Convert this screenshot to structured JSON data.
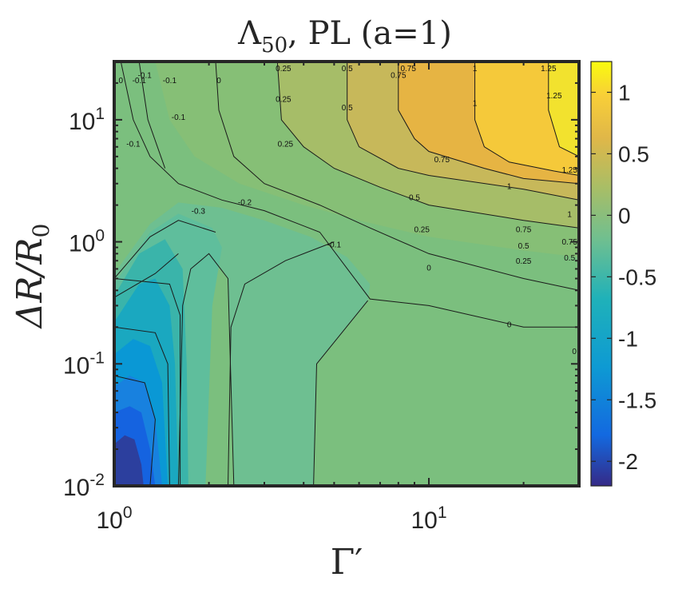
{
  "chart_data": {
    "type": "contour",
    "title": {
      "main": "Λ",
      "sub": "50",
      "rest": ", PL (a=1)"
    },
    "xlabel": "Γ′",
    "ylabel": "ΔR/R",
    "ylabel_sub": "0",
    "x_scale": "log",
    "y_scale": "log",
    "xlim": [
      1,
      30
    ],
    "ylim": [
      0.01,
      30
    ],
    "x_ticks": [
      {
        "value": 1,
        "base": "10",
        "exp": "0"
      },
      {
        "value": 10,
        "base": "10",
        "exp": "1"
      }
    ],
    "y_ticks": [
      {
        "value": 0.01,
        "base": "10",
        "exp": "-2"
      },
      {
        "value": 0.1,
        "base": "10",
        "exp": "-1"
      },
      {
        "value": 1,
        "base": "10",
        "exp": "0"
      },
      {
        "value": 10,
        "base": "10",
        "exp": "1"
      }
    ],
    "colorbar": {
      "colormap": "parula",
      "range": [
        -2.2,
        1.25
      ],
      "ticks": [
        {
          "value": 1,
          "label": "1"
        },
        {
          "value": 0.5,
          "label": "0.5"
        },
        {
          "value": 0,
          "label": "0"
        },
        {
          "value": -0.5,
          "label": "-0.5"
        },
        {
          "value": -1,
          "label": "-1"
        },
        {
          "value": -1.5,
          "label": "-1.5"
        },
        {
          "value": -2,
          "label": "-2"
        }
      ]
    },
    "filled_regions": [
      {
        "level": -0.1,
        "color": "#7bbf7e",
        "points": [
          [
            1,
            0.01
          ],
          [
            30,
            0.01
          ],
          [
            30,
            30
          ],
          [
            1,
            30
          ]
        ]
      },
      {
        "level": 0,
        "color": "#86bf76",
        "points": [
          [
            1.35,
            30
          ],
          [
            1.5,
            10
          ],
          [
            1.8,
            5
          ],
          [
            2.5,
            3
          ],
          [
            4,
            2
          ],
          [
            6,
            1.5
          ],
          [
            10,
            1.1
          ],
          [
            20,
            0.85
          ],
          [
            30,
            0.75
          ],
          [
            30,
            30
          ]
        ]
      },
      {
        "level": 0.25,
        "color": "#a6bd68",
        "points": [
          [
            3.3,
            30
          ],
          [
            3.4,
            10
          ],
          [
            4,
            6
          ],
          [
            5,
            4
          ],
          [
            7,
            2.8
          ],
          [
            10,
            2
          ],
          [
            20,
            1.5
          ],
          [
            30,
            1.3
          ],
          [
            30,
            30
          ]
        ]
      },
      {
        "level": 0.5,
        "color": "#c7b85a",
        "points": [
          [
            5.5,
            30
          ],
          [
            5.5,
            10
          ],
          [
            6,
            6
          ],
          [
            8,
            4
          ],
          [
            10,
            3.5
          ],
          [
            20,
            2.7
          ],
          [
            30,
            2.2
          ],
          [
            30,
            30
          ]
        ]
      },
      {
        "level": 0.75,
        "color": "#e6b443",
        "points": [
          [
            8,
            30
          ],
          [
            8,
            12
          ],
          [
            9,
            7
          ],
          [
            10,
            5.5
          ],
          [
            15,
            4
          ],
          [
            20,
            3.3
          ],
          [
            30,
            3
          ],
          [
            30,
            30
          ]
        ]
      },
      {
        "level": 1.0,
        "color": "#f5c93a",
        "points": [
          [
            14,
            30
          ],
          [
            14,
            10
          ],
          [
            15,
            6
          ],
          [
            18,
            4.5
          ],
          [
            25,
            3.8
          ],
          [
            30,
            3.5
          ],
          [
            30,
            30
          ]
        ]
      },
      {
        "level": 1.25,
        "color": "#f2e22e",
        "points": [
          [
            24,
            30
          ],
          [
            24,
            12
          ],
          [
            26,
            6
          ],
          [
            30,
            5
          ],
          [
            30,
            30
          ]
        ]
      },
      {
        "level": -0.2,
        "color": "#6ebf91",
        "points": [
          [
            1,
            0.55
          ],
          [
            1.3,
            1.4
          ],
          [
            1.6,
            2.1
          ],
          [
            2.2,
            1.9
          ],
          [
            3,
            1.5
          ],
          [
            4.2,
            1.1
          ],
          [
            5.5,
            0.75
          ],
          [
            6.5,
            0.45
          ],
          [
            6.4,
            0.33
          ],
          [
            4.4,
            0.1
          ],
          [
            4.3,
            0.01
          ],
          [
            2.4,
            0.01
          ],
          [
            2.3,
            0.5
          ],
          [
            1.9,
            0.9
          ],
          [
            1.5,
            0.8
          ],
          [
            1,
            0.3
          ]
        ]
      },
      {
        "level": -0.3,
        "color": "#5fbe9c",
        "points": [
          [
            1,
            0.45
          ],
          [
            1.3,
            1.2
          ],
          [
            1.6,
            1.7
          ],
          [
            2.05,
            1.3
          ],
          [
            2.2,
            0.9
          ],
          [
            2.05,
            0.3
          ],
          [
            1.95,
            0.01
          ],
          [
            1,
            0.01
          ]
        ]
      },
      {
        "level": -0.5,
        "color": "#3ab4aa",
        "points": [
          [
            1,
            0.36
          ],
          [
            1.2,
            0.8
          ],
          [
            1.45,
            1.05
          ],
          [
            1.65,
            0.6
          ],
          [
            1.7,
            0.1
          ],
          [
            1.72,
            0.01
          ],
          [
            1,
            0.01
          ]
        ]
      },
      {
        "level": -0.75,
        "color": "#1aa8c0",
        "points": [
          [
            1,
            0.22
          ],
          [
            1.2,
            0.45
          ],
          [
            1.35,
            0.5
          ],
          [
            1.5,
            0.3
          ],
          [
            1.56,
            0.1
          ],
          [
            1.6,
            0.01
          ],
          [
            1,
            0.01
          ]
        ]
      },
      {
        "level": -1.0,
        "color": "#0a98d5",
        "points": [
          [
            1,
            0.12
          ],
          [
            1.15,
            0.16
          ],
          [
            1.3,
            0.14
          ],
          [
            1.42,
            0.07
          ],
          [
            1.48,
            0.01
          ],
          [
            1,
            0.01
          ]
        ]
      },
      {
        "level": -1.3,
        "color": "#1881df",
        "points": [
          [
            1,
            0.065
          ],
          [
            1.12,
            0.08
          ],
          [
            1.25,
            0.07
          ],
          [
            1.35,
            0.035
          ],
          [
            1.42,
            0.01
          ],
          [
            1,
            0.01
          ]
        ]
      },
      {
        "level": -1.6,
        "color": "#1563e0",
        "points": [
          [
            1,
            0.04
          ],
          [
            1.12,
            0.045
          ],
          [
            1.22,
            0.04
          ],
          [
            1.3,
            0.02
          ],
          [
            1.35,
            0.01
          ],
          [
            1,
            0.01
          ]
        ]
      },
      {
        "level": -1.9,
        "color": "#2c3f9e",
        "points": [
          [
            1,
            0.022
          ],
          [
            1.08,
            0.026
          ],
          [
            1.16,
            0.024
          ],
          [
            1.22,
            0.015
          ],
          [
            1.24,
            0.01
          ],
          [
            1,
            0.01
          ]
        ]
      }
    ],
    "contour_lines": [
      [
        [
          1.05,
          30
        ],
        [
          1.15,
          10
        ],
        [
          1.3,
          5
        ],
        [
          1.6,
          3
        ],
        [
          2.2,
          2.2
        ],
        [
          3,
          1.8
        ],
        [
          4.5,
          1.2
        ],
        [
          6.5,
          0.34
        ],
        [
          10,
          0.3
        ],
        [
          20,
          0.2
        ],
        [
          30,
          0.2
        ]
      ],
      [
        [
          2.1,
          30
        ],
        [
          2.15,
          12
        ],
        [
          2.4,
          5
        ],
        [
          3,
          3
        ],
        [
          4.5,
          2
        ],
        [
          6.5,
          1.3
        ],
        [
          10,
          0.8
        ],
        [
          20,
          0.5
        ],
        [
          30,
          0.4
        ]
      ],
      [
        [
          3.3,
          30
        ],
        [
          3.4,
          10
        ],
        [
          4,
          6
        ],
        [
          5,
          4
        ],
        [
          7,
          2.8
        ],
        [
          10,
          2
        ],
        [
          20,
          1.5
        ],
        [
          30,
          1.3
        ]
      ],
      [
        [
          5.5,
          30
        ],
        [
          5.5,
          10
        ],
        [
          6,
          6
        ],
        [
          8,
          4
        ],
        [
          10,
          3.5
        ],
        [
          20,
          2.7
        ],
        [
          30,
          2.2
        ]
      ],
      [
        [
          8,
          30
        ],
        [
          8,
          12
        ],
        [
          9,
          7
        ],
        [
          10,
          5.5
        ],
        [
          15,
          4
        ],
        [
          20,
          3.3
        ],
        [
          30,
          3
        ]
      ],
      [
        [
          14,
          30
        ],
        [
          14,
          10
        ],
        [
          15,
          6
        ],
        [
          18,
          4.5
        ],
        [
          25,
          3.8
        ],
        [
          30,
          3.5
        ]
      ],
      [
        [
          24,
          30
        ],
        [
          24,
          12
        ],
        [
          26,
          6
        ],
        [
          30,
          5
        ]
      ],
      [
        [
          1.6,
          0.01
        ],
        [
          1.65,
          0.3
        ],
        [
          1.75,
          0.6
        ],
        [
          2,
          0.8
        ],
        [
          2.3,
          0.5
        ],
        [
          2.4,
          0.01
        ]
      ],
      [
        [
          2.3,
          0.01
        ],
        [
          2.35,
          0.2
        ],
        [
          2.6,
          0.45
        ],
        [
          3.5,
          0.7
        ],
        [
          5,
          1
        ]
      ],
      [
        [
          4.3,
          0.01
        ],
        [
          4.4,
          0.1
        ],
        [
          6.4,
          0.33
        ]
      ],
      [
        [
          1,
          0.35
        ],
        [
          1.35,
          0.55
        ],
        [
          1.6,
          0.8
        ]
      ],
      [
        [
          1,
          0.5
        ],
        [
          1.3,
          1.1
        ],
        [
          1.6,
          1.5
        ],
        [
          2.1,
          1.2
        ]
      ],
      [
        [
          1.2,
          30
        ],
        [
          1.28,
          10
        ],
        [
          1.45,
          4
        ]
      ],
      [
        [
          1.3,
          0.01
        ],
        [
          1.35,
          0.035
        ],
        [
          1.25,
          0.07
        ],
        [
          1,
          0.08
        ]
      ],
      [
        [
          1.5,
          0.01
        ],
        [
          1.48,
          0.1
        ],
        [
          1.35,
          0.18
        ],
        [
          1,
          0.2
        ]
      ],
      [
        [
          1.62,
          0.01
        ],
        [
          1.62,
          0.25
        ],
        [
          1.5,
          0.45
        ],
        [
          1,
          0.5
        ]
      ]
    ],
    "contour_labels": [
      {
        "x": 1.05,
        "y": 20,
        "text": "0"
      },
      {
        "x": 1.2,
        "y": 20,
        "text": "-0.1"
      },
      {
        "x": 1.25,
        "y": 22,
        "text": "-0.1"
      },
      {
        "x": 1.5,
        "y": 20,
        "text": "-0.1"
      },
      {
        "x": 1.6,
        "y": 10,
        "text": "-0.1"
      },
      {
        "x": 1.15,
        "y": 6,
        "text": "-0.1"
      },
      {
        "x": 2.15,
        "y": 20,
        "text": "0"
      },
      {
        "x": 3.45,
        "y": 25,
        "text": "0.25"
      },
      {
        "x": 3.45,
        "y": 14,
        "text": "0.25"
      },
      {
        "x": 3.5,
        "y": 6,
        "text": "0.25"
      },
      {
        "x": 5.5,
        "y": 25,
        "text": "0.5"
      },
      {
        "x": 5.5,
        "y": 12,
        "text": "0.5"
      },
      {
        "x": 8,
        "y": 22,
        "text": "0.75"
      },
      {
        "x": 8.6,
        "y": 25,
        "text": "0.75"
      },
      {
        "x": 14,
        "y": 25,
        "text": "1"
      },
      {
        "x": 14,
        "y": 13,
        "text": "1"
      },
      {
        "x": 24,
        "y": 25,
        "text": "1.25"
      },
      {
        "x": 25,
        "y": 15,
        "text": "1.25"
      },
      {
        "x": 28,
        "y": 3.7,
        "text": "1.25"
      },
      {
        "x": 11,
        "y": 4.5,
        "text": "0.75"
      },
      {
        "x": 18,
        "y": 2.7,
        "text": "1"
      },
      {
        "x": 28,
        "y": 1.6,
        "text": "1"
      },
      {
        "x": 9,
        "y": 2.2,
        "text": "0.5"
      },
      {
        "x": 20,
        "y": 1.2,
        "text": "0.75"
      },
      {
        "x": 28,
        "y": 0.95,
        "text": "0.75"
      },
      {
        "x": 9.5,
        "y": 1.2,
        "text": "0.25"
      },
      {
        "x": 20,
        "y": 0.88,
        "text": "0.5"
      },
      {
        "x": 28,
        "y": 0.7,
        "text": "0.5"
      },
      {
        "x": 20,
        "y": 0.66,
        "text": "0.25"
      },
      {
        "x": 10,
        "y": 0.58,
        "text": "0"
      },
      {
        "x": 18,
        "y": 0.2,
        "text": "0"
      },
      {
        "x": 29,
        "y": 0.12,
        "text": "0"
      },
      {
        "x": 1.85,
        "y": 1.7,
        "text": "-0.3"
      },
      {
        "x": 2.6,
        "y": 2.0,
        "text": "-0.2"
      },
      {
        "x": 5,
        "y": 0.9,
        "text": "-0.1"
      }
    ]
  }
}
